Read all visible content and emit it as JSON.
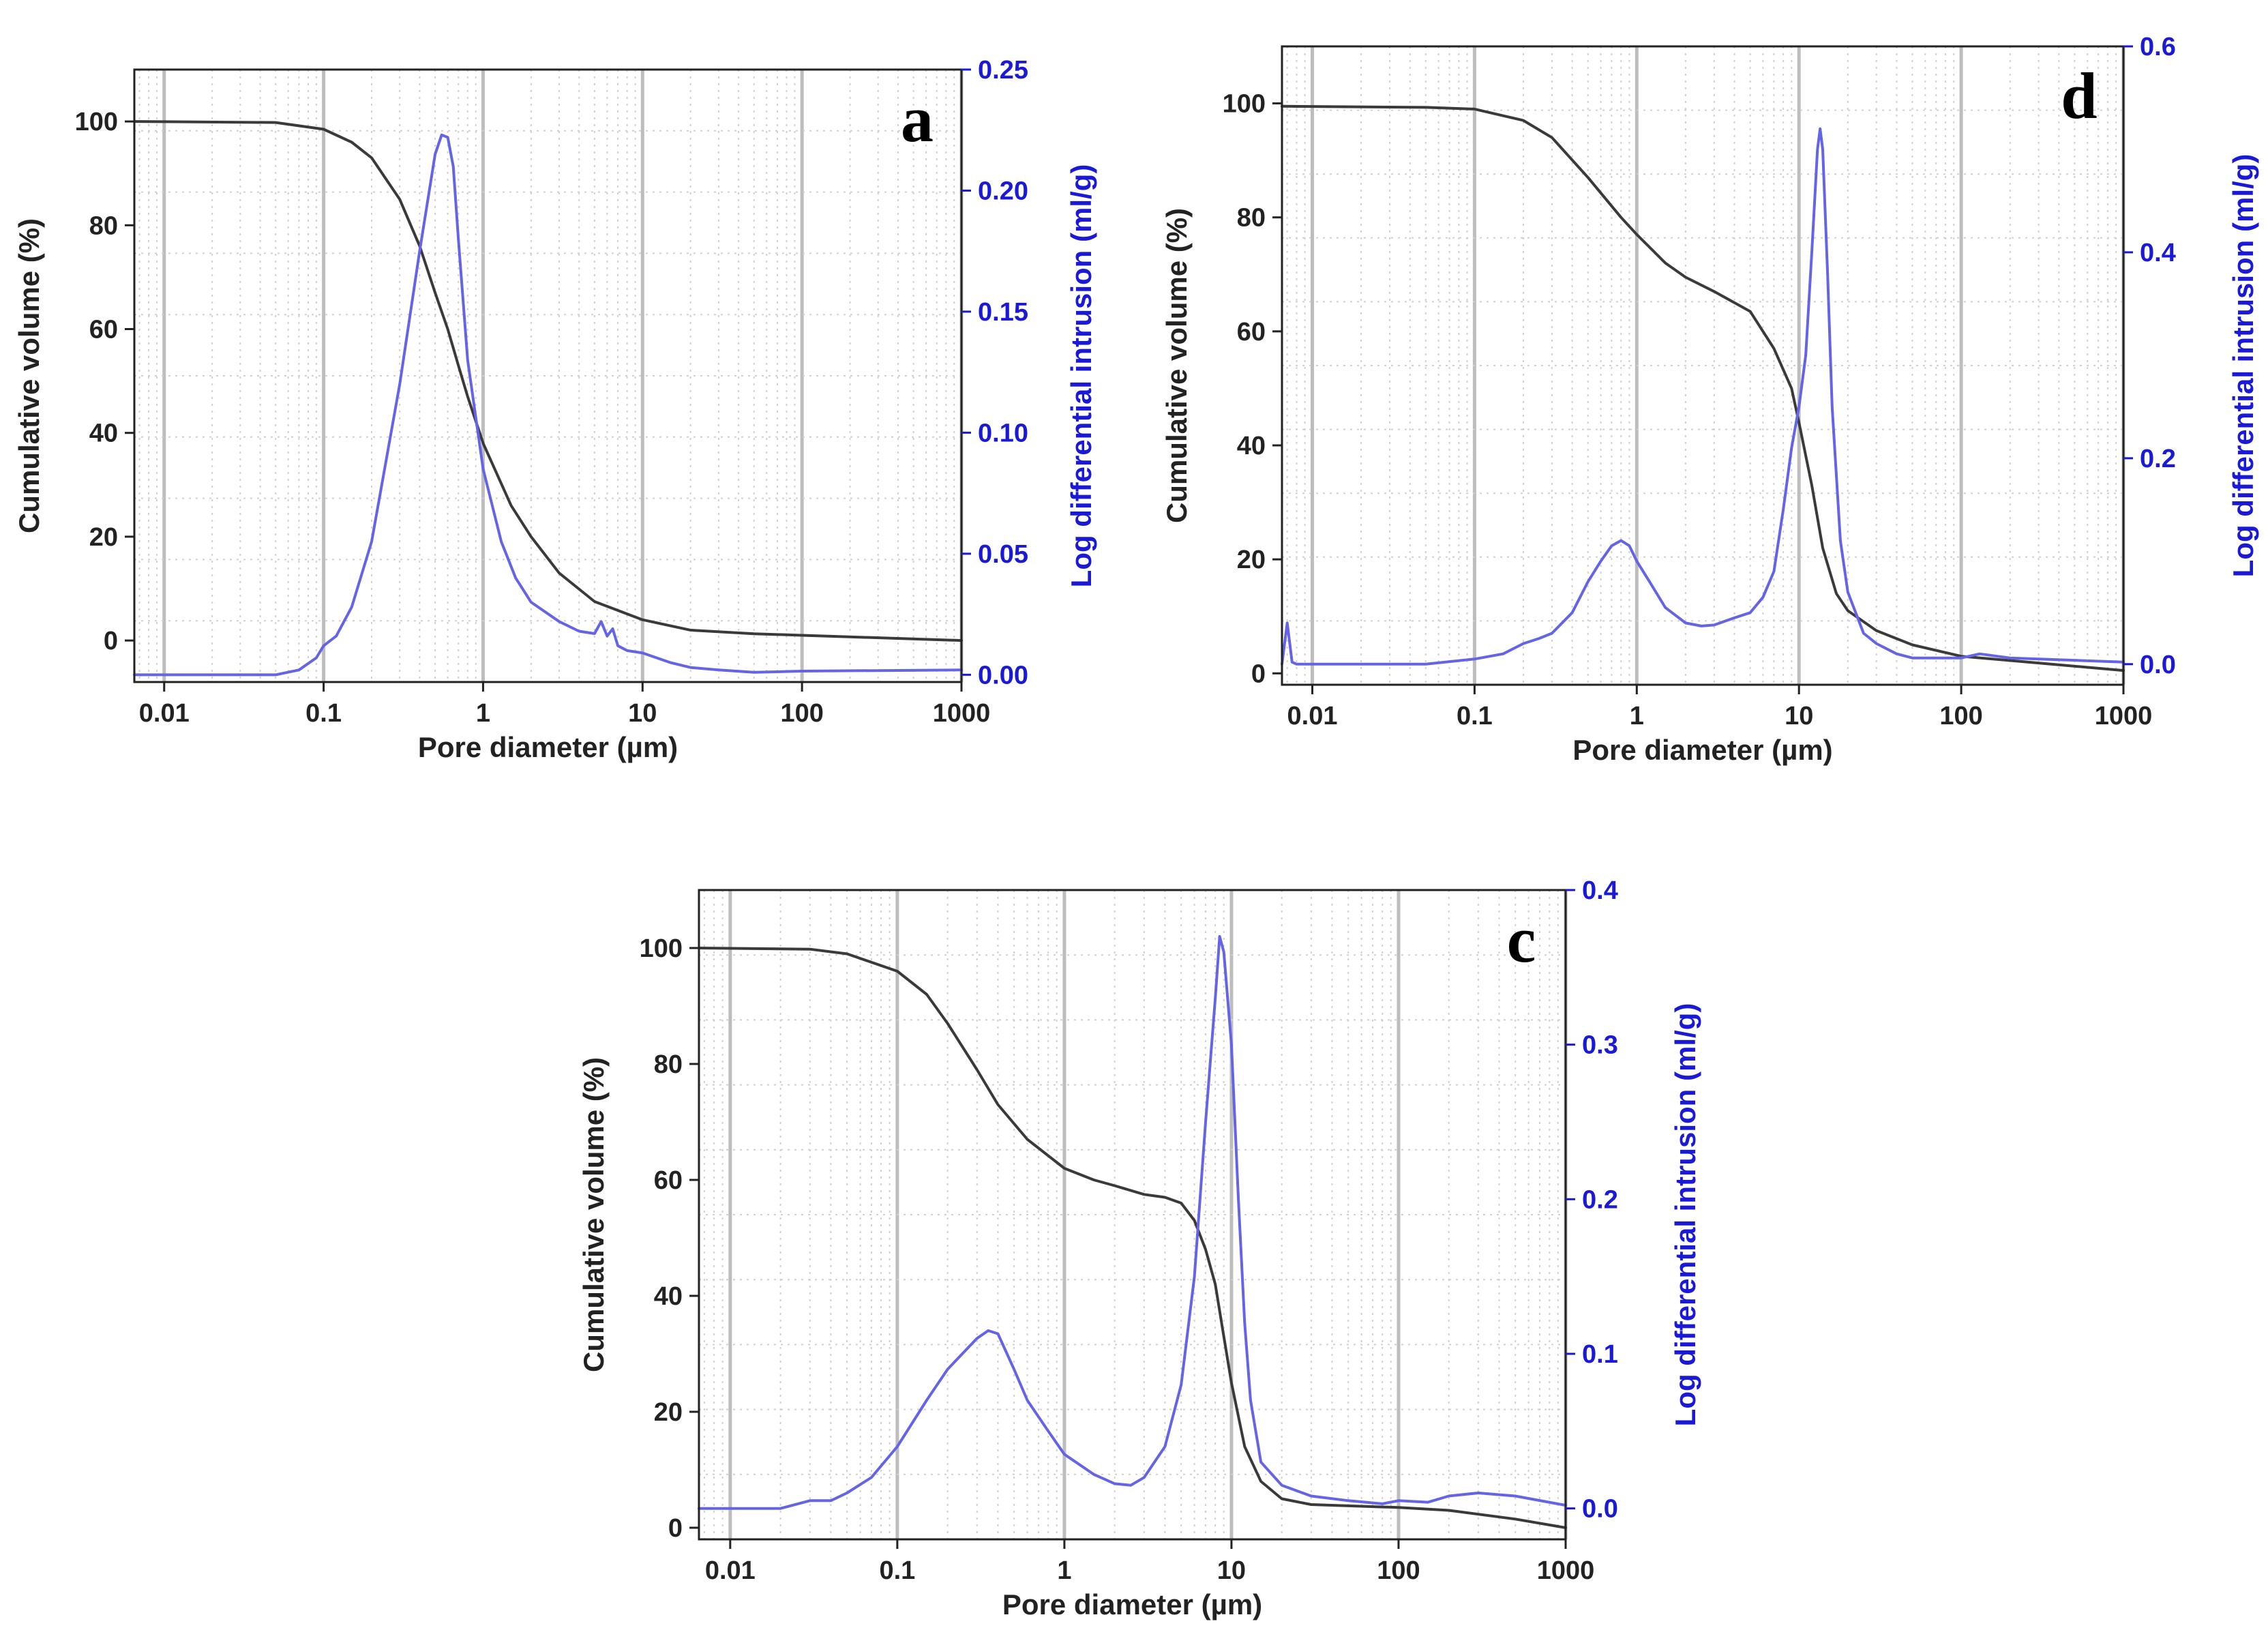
{
  "colors": {
    "cumulative": "#3a3a3a",
    "differential": "#6464e6",
    "right_axis": "#1a1ad6",
    "major_grid": "#bdbdbd",
    "minor_grid": "#d0d0d0",
    "frame": "#222222"
  },
  "chart_data": [
    {
      "id": "a",
      "panel_label": "a",
      "type": "line",
      "xscale": "log",
      "xlabel": "Pore diameter (µm)",
      "ylabel": "Cumulative volume (%)",
      "y2label": "Log differential intrusion (ml/g)",
      "xlim": [
        0.0065,
        1000
      ],
      "ylim": [
        -8,
        110
      ],
      "y2lim": [
        -0.003,
        0.25
      ],
      "xticks": [
        0.01,
        0.1,
        1,
        10,
        100,
        1000
      ],
      "xtick_labels": [
        "0.01",
        "0.1",
        "1",
        "10",
        "100",
        "1000"
      ],
      "yticks": [
        0,
        20,
        40,
        60,
        80,
        100
      ],
      "ytick_labels": [
        "0",
        "20",
        "40",
        "60",
        "80",
        "100"
      ],
      "y2ticks": [
        0,
        0.05,
        0.1,
        0.15,
        0.2,
        0.25
      ],
      "y2tick_labels": [
        "0.00",
        "0.05",
        "0.10",
        "0.15",
        "0.20",
        "0.25"
      ],
      "grid": true,
      "series": [
        {
          "name": "Cumulative volume",
          "axis": "left",
          "x": [
            0.0065,
            0.05,
            0.1,
            0.15,
            0.2,
            0.3,
            0.4,
            0.5,
            0.6,
            0.7,
            0.8,
            1.0,
            1.5,
            2,
            3,
            5,
            10,
            20,
            50,
            100,
            1000
          ],
          "y": [
            100,
            99.8,
            98.5,
            96,
            93,
            85,
            76,
            67,
            60,
            53,
            47,
            38,
            26,
            20,
            13,
            7.5,
            4,
            2,
            1.3,
            1,
            0
          ]
        },
        {
          "name": "Log differential intrusion",
          "axis": "right",
          "x": [
            0.0065,
            0.05,
            0.07,
            0.09,
            0.1,
            0.12,
            0.15,
            0.2,
            0.3,
            0.4,
            0.5,
            0.55,
            0.6,
            0.65,
            0.7,
            0.8,
            1.0,
            1.3,
            1.6,
            2,
            3,
            4,
            5,
            5.5,
            6,
            6.5,
            7,
            8,
            10,
            15,
            20,
            30,
            50,
            100,
            1000
          ],
          "y": [
            0,
            0,
            0.002,
            0.007,
            0.012,
            0.016,
            0.028,
            0.055,
            0.12,
            0.175,
            0.215,
            0.223,
            0.222,
            0.21,
            0.18,
            0.13,
            0.085,
            0.055,
            0.04,
            0.03,
            0.022,
            0.018,
            0.017,
            0.022,
            0.016,
            0.019,
            0.012,
            0.01,
            0.009,
            0.005,
            0.003,
            0.002,
            0.001,
            0.0015,
            0.002
          ]
        }
      ]
    },
    {
      "id": "d",
      "panel_label": "d",
      "type": "line",
      "xscale": "log",
      "xlabel": "Pore diameter (µm)",
      "ylabel": "Cumulative volume (%)",
      "y2label": "Log differential intrusion (ml/g)",
      "xlim": [
        0.0065,
        1000
      ],
      "ylim": [
        -2,
        110
      ],
      "y2lim": [
        -0.02,
        0.6
      ],
      "xticks": [
        0.01,
        0.1,
        1,
        10,
        100,
        1000
      ],
      "xtick_labels": [
        "0.01",
        "0.1",
        "1",
        "10",
        "100",
        "1000"
      ],
      "yticks": [
        0,
        20,
        40,
        60,
        80,
        100
      ],
      "ytick_labels": [
        "0",
        "20",
        "40",
        "60",
        "80",
        "100"
      ],
      "y2ticks": [
        0,
        0.2,
        0.4,
        0.6
      ],
      "y2tick_labels": [
        "0.0",
        "0.2",
        "0.4",
        "0.6"
      ],
      "grid": true,
      "series": [
        {
          "name": "Cumulative volume",
          "axis": "left",
          "x": [
            0.0065,
            0.05,
            0.1,
            0.2,
            0.3,
            0.5,
            0.8,
            1,
            1.5,
            2,
            3,
            5,
            7,
            9,
            10,
            12,
            14,
            17,
            20,
            30,
            50,
            100,
            1000
          ],
          "y": [
            99.5,
            99.3,
            99,
            97,
            94,
            87,
            80,
            77,
            72,
            69.5,
            67,
            63.5,
            57,
            50,
            44,
            33,
            22,
            14,
            11,
            7.5,
            5,
            3,
            0.5
          ]
        },
        {
          "name": "Log differential intrusion",
          "axis": "right",
          "x": [
            0.0065,
            0.007,
            0.0075,
            0.008,
            0.01,
            0.02,
            0.05,
            0.1,
            0.15,
            0.2,
            0.25,
            0.3,
            0.4,
            0.5,
            0.6,
            0.7,
            0.8,
            0.9,
            1,
            1.2,
            1.5,
            2,
            2.5,
            3,
            4,
            5,
            6,
            7,
            8,
            9,
            10,
            11,
            12,
            13,
            13.5,
            14,
            15,
            16,
            18,
            20,
            25,
            30,
            40,
            50,
            100,
            130,
            200,
            1000
          ],
          "y": [
            0,
            0.04,
            0.002,
            0,
            0,
            0,
            0,
            0.005,
            0.01,
            0.02,
            0.025,
            0.03,
            0.05,
            0.08,
            0.1,
            0.115,
            0.12,
            0.115,
            0.1,
            0.08,
            0.055,
            0.04,
            0.037,
            0.038,
            0.045,
            0.05,
            0.065,
            0.09,
            0.15,
            0.21,
            0.25,
            0.3,
            0.4,
            0.5,
            0.52,
            0.5,
            0.38,
            0.25,
            0.12,
            0.07,
            0.03,
            0.02,
            0.01,
            0.006,
            0.006,
            0.01,
            0.006,
            0.002
          ]
        }
      ]
    },
    {
      "id": "c",
      "panel_label": "c",
      "type": "line",
      "xscale": "log",
      "xlabel": "Pore diameter (µm)",
      "ylabel": "Cumulative volume (%)",
      "y2label": "Log differential intrusion (ml/g)",
      "xlim": [
        0.0065,
        1000
      ],
      "ylim": [
        -2,
        110
      ],
      "y2lim": [
        -0.02,
        0.4
      ],
      "xticks": [
        0.01,
        0.1,
        1,
        10,
        100,
        1000
      ],
      "xtick_labels": [
        "0.01",
        "0.1",
        "1",
        "10",
        "100",
        "1000"
      ],
      "yticks": [
        0,
        20,
        40,
        60,
        80,
        100
      ],
      "ytick_labels": [
        "0",
        "20",
        "40",
        "60",
        "80",
        "100"
      ],
      "y2ticks": [
        0,
        0.1,
        0.2,
        0.3,
        0.4
      ],
      "y2tick_labels": [
        "0.0",
        "0.1",
        "0.2",
        "0.3",
        "0.4"
      ],
      "grid": true,
      "series": [
        {
          "name": "Cumulative volume",
          "axis": "left",
          "x": [
            0.0065,
            0.03,
            0.05,
            0.1,
            0.15,
            0.2,
            0.3,
            0.4,
            0.6,
            1,
            1.5,
            2,
            3,
            4,
            5,
            6,
            7,
            8,
            9,
            10,
            12,
            15,
            20,
            30,
            100,
            200,
            500,
            1000
          ],
          "y": [
            100,
            99.8,
            99,
            96,
            92,
            87,
            79,
            73,
            67,
            62,
            60,
            59,
            57.5,
            57,
            56,
            53,
            48,
            42,
            33,
            25,
            14,
            8,
            5,
            4,
            3.5,
            3,
            1.5,
            0
          ]
        },
        {
          "name": "Log differential intrusion",
          "axis": "right",
          "x": [
            0.0065,
            0.02,
            0.03,
            0.04,
            0.05,
            0.07,
            0.1,
            0.15,
            0.2,
            0.3,
            0.35,
            0.4,
            0.5,
            0.6,
            0.8,
            1,
            1.5,
            2,
            2.5,
            3,
            4,
            5,
            6,
            7,
            8,
            8.5,
            9,
            10,
            11,
            12,
            13,
            15,
            20,
            30,
            50,
            80,
            100,
            150,
            200,
            300,
            500,
            1000
          ],
          "y": [
            0,
            0,
            0.005,
            0.005,
            0.01,
            0.02,
            0.04,
            0.07,
            0.09,
            0.11,
            0.115,
            0.113,
            0.09,
            0.07,
            0.05,
            0.035,
            0.022,
            0.016,
            0.015,
            0.02,
            0.04,
            0.08,
            0.15,
            0.25,
            0.33,
            0.37,
            0.36,
            0.3,
            0.2,
            0.12,
            0.07,
            0.03,
            0.015,
            0.008,
            0.005,
            0.003,
            0.005,
            0.004,
            0.008,
            0.01,
            0.008,
            0.002
          ]
        }
      ]
    }
  ]
}
